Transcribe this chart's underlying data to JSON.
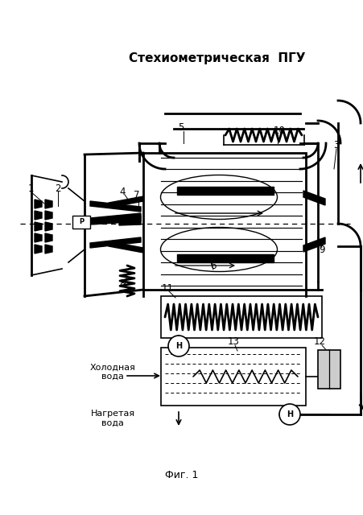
{
  "title": "Стехиометрическая  ПГУ",
  "fig_caption": "Фиг. 1",
  "bg_color": "#ffffff",
  "line_color": "#000000",
  "холодная_вода": "Холодная\nвода",
  "нагретая_вода": "Нагретая\nвода",
  "lw_main": 2.0,
  "lw_thin": 1.2,
  "lw_pipe": 2.5
}
